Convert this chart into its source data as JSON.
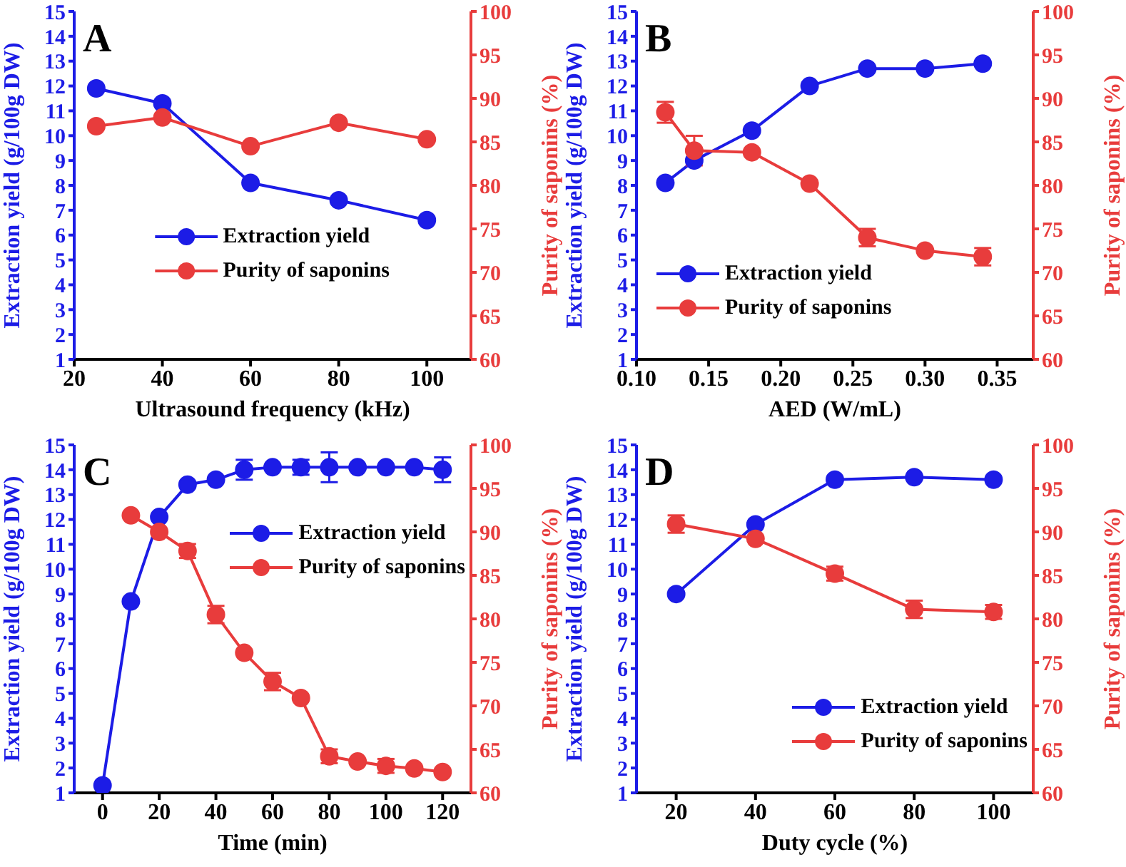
{
  "chart_data": [
    {
      "type": "line",
      "annotations": [
        "A"
      ],
      "xlabel": "Ultrasound frequency (kHz)",
      "ylabel": "Extraction yield (g/100g DW)",
      "y2label": "Purity of saponins (%)",
      "xlim": [
        20,
        110
      ],
      "xticks": [
        20,
        40,
        60,
        80,
        100
      ],
      "ylim": [
        1,
        15
      ],
      "yticks": [
        1,
        2,
        3,
        4,
        5,
        6,
        7,
        8,
        9,
        10,
        11,
        12,
        13,
        14,
        15
      ],
      "y2lim": [
        60,
        100
      ],
      "y2ticks": [
        60,
        65,
        70,
        75,
        80,
        85,
        90,
        95,
        100
      ],
      "legend": "center",
      "marker": "circle",
      "line_style": "solid",
      "series": [
        {
          "name": "Extraction yield",
          "color": "#1c1ce6",
          "x": [
            25,
            40,
            60,
            80,
            100
          ],
          "values": [
            11.9,
            11.3,
            8.1,
            7.4,
            6.6
          ]
        },
        {
          "name": "Purity of saponins",
          "color": "#e83c3c",
          "axis": "y2",
          "x": [
            25,
            40,
            60,
            80,
            100
          ],
          "values": [
            86.8,
            87.8,
            84.5,
            87.2,
            85.3
          ]
        }
      ]
    },
    {
      "type": "line",
      "annotations": [
        "B"
      ],
      "xlabel": "AED (W/mL)",
      "ylabel": "Extraction yield (g/100g DW)",
      "y2label": "Purity of saponins (%)",
      "xlim": [
        0.1,
        0.375
      ],
      "xticks": [
        {
          "value": 0.1,
          "label": "0.10"
        },
        0.15,
        {
          "value": 0.2,
          "label": "0.20"
        },
        0.25,
        {
          "value": 0.3,
          "label": "0.30"
        },
        0.35
      ],
      "ylim": [
        1,
        15
      ],
      "yticks": [
        1,
        2,
        3,
        4,
        5,
        6,
        7,
        8,
        9,
        10,
        11,
        12,
        13,
        14,
        15
      ],
      "y2lim": [
        60,
        100
      ],
      "y2ticks": [
        60,
        65,
        70,
        75,
        80,
        85,
        90,
        95,
        100
      ],
      "legend": "bottom left",
      "marker": "circle",
      "line_style": "solid",
      "series": [
        {
          "name": "Extraction yield",
          "color": "#1c1ce6",
          "x": [
            0.12,
            0.14,
            0.18,
            0.22,
            0.26,
            0.3,
            0.34
          ],
          "values": [
            8.1,
            9.0,
            10.2,
            12.0,
            12.7,
            12.7,
            12.9
          ]
        },
        {
          "name": "Purity of saponins",
          "color": "#e83c3c",
          "axis": "y2",
          "x": [
            0.12,
            0.14,
            0.18,
            0.22,
            0.26,
            0.3,
            0.34
          ],
          "values": [
            88.4,
            84.0,
            83.8,
            80.2,
            74.0,
            72.5,
            71.8
          ],
          "errors": [
            1.2,
            1.7,
            null,
            null,
            1.0,
            null,
            1.0
          ]
        }
      ]
    },
    {
      "type": "line",
      "annotations": [
        "C"
      ],
      "xlabel": "Time (min)",
      "ylabel": "Extraction yield (g/100g DW)",
      "y2label": "Purity of saponins (%)",
      "xlim": [
        -10,
        130
      ],
      "xticks": [
        0,
        20,
        40,
        60,
        80,
        100,
        120
      ],
      "ylim": [
        1,
        15
      ],
      "yticks": [
        1,
        2,
        3,
        4,
        5,
        6,
        7,
        8,
        9,
        10,
        11,
        12,
        13,
        14,
        15
      ],
      "y2lim": [
        60,
        100
      ],
      "y2ticks": [
        60,
        65,
        70,
        75,
        80,
        85,
        90,
        95,
        100
      ],
      "legend": "top right",
      "marker": "circle",
      "line_style": "solid",
      "series": [
        {
          "name": "Extraction yield",
          "color": "#1c1ce6",
          "x": [
            0,
            10,
            20,
            30,
            40,
            50,
            60,
            70,
            80,
            90,
            100,
            110,
            120
          ],
          "values": [
            1.3,
            8.7,
            12.1,
            13.4,
            13.6,
            14.0,
            14.1,
            14.1,
            14.1,
            14.1,
            14.1,
            14.1,
            14.0
          ],
          "errors": [
            null,
            null,
            null,
            null,
            null,
            0.4,
            null,
            0.3,
            0.6,
            null,
            null,
            null,
            0.5
          ]
        },
        {
          "name": "Purity of saponins",
          "color": "#e83c3c",
          "axis": "y2",
          "x": [
            10,
            20,
            30,
            40,
            50,
            60,
            70,
            80,
            90,
            100,
            110,
            120
          ],
          "values": [
            91.9,
            90.0,
            87.8,
            80.5,
            76.1,
            72.8,
            70.9,
            64.2,
            63.6,
            63.1,
            62.8,
            62.4
          ],
          "errors": [
            null,
            null,
            0.8,
            1.0,
            null,
            1.0,
            null,
            0.8,
            null,
            0.8,
            null,
            null
          ]
        }
      ]
    },
    {
      "type": "line",
      "annotations": [
        "D"
      ],
      "xlabel": "Duty cycle (%)",
      "ylabel": "Extraction yield (g/100g DW)",
      "y2label": "Purity of saponins (%)",
      "xlim": [
        10,
        110
      ],
      "xticks": [
        20,
        40,
        60,
        80,
        100
      ],
      "ylim": [
        1,
        15
      ],
      "yticks": [
        1,
        2,
        3,
        4,
        5,
        6,
        7,
        8,
        9,
        10,
        11,
        12,
        13,
        14,
        15
      ],
      "y2lim": [
        60,
        100
      ],
      "y2ticks": [
        60,
        65,
        70,
        75,
        80,
        85,
        90,
        95,
        100
      ],
      "legend": "bottom right",
      "marker": "circle",
      "line_style": "solid",
      "series": [
        {
          "name": "Extraction yield",
          "color": "#1c1ce6",
          "x": [
            20,
            40,
            60,
            80,
            100
          ],
          "values": [
            9.0,
            11.8,
            13.6,
            13.7,
            13.6
          ]
        },
        {
          "name": "Purity of saponins",
          "color": "#e83c3c",
          "axis": "y2",
          "x": [
            20,
            40,
            60,
            80,
            100
          ],
          "values": [
            90.9,
            89.2,
            85.2,
            81.1,
            80.8
          ],
          "errors": [
            1.0,
            null,
            0.8,
            1.0,
            0.8
          ]
        }
      ]
    }
  ]
}
